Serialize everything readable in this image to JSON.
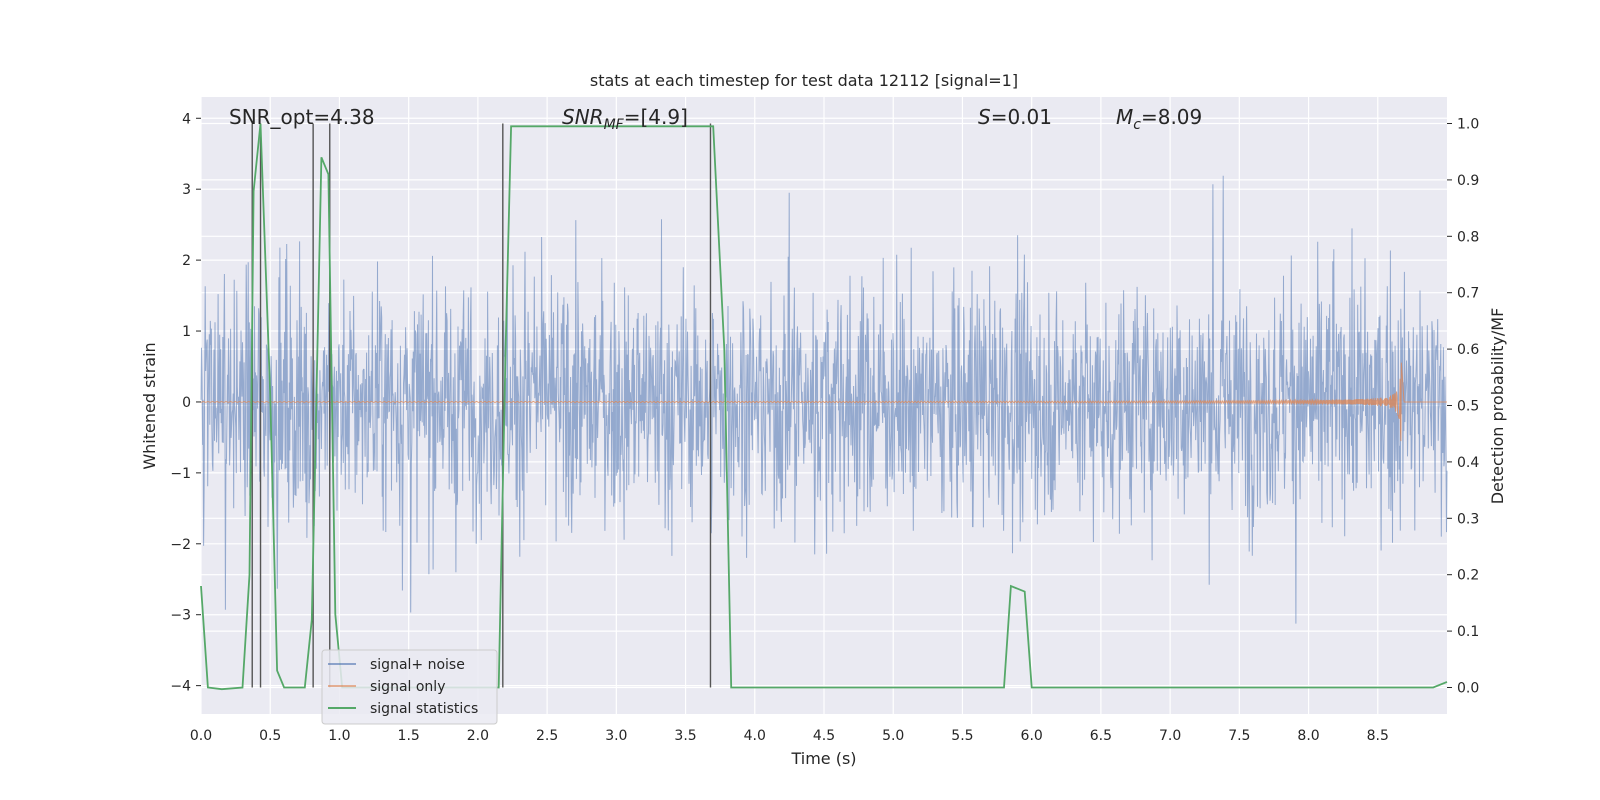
{
  "chart_data": {
    "type": "line",
    "title": "stats at each timestep for test data 12112 [signal=1]",
    "xlabel": "Time (s)",
    "ylabel": "Whitened strain",
    "y2label": "Detection probability/MF",
    "xlim": [
      0.0,
      9.0
    ],
    "ylim": [
      -4.4,
      4.3
    ],
    "y2lim": [
      -0.047,
      1.047
    ],
    "xticks": [
      "0.0",
      "0.5",
      "1.0",
      "1.5",
      "2.0",
      "2.5",
      "3.0",
      "3.5",
      "4.0",
      "4.5",
      "5.0",
      "5.5",
      "6.0",
      "6.5",
      "7.0",
      "7.5",
      "8.0",
      "8.5"
    ],
    "yticks": [
      "−4",
      "−3",
      "−2",
      "−1",
      "0",
      "1",
      "2",
      "3",
      "4"
    ],
    "y2ticks": [
      "0.0",
      "0.1",
      "0.2",
      "0.3",
      "0.4",
      "0.5",
      "0.6",
      "0.7",
      "0.8",
      "0.9",
      "1.0"
    ],
    "grid": true,
    "legend_position": "lower-left",
    "annotations": {
      "snr_opt": "SNR_opt=4.38",
      "snr_mf_main": "SNR",
      "snr_mf_sub": "MF",
      "snr_mf_value": "=[4.9]",
      "s_main": "S",
      "s_value": "=0.01",
      "mc_main": "M",
      "mc_sub": "c",
      "mc_value": "=8.09"
    },
    "series": [
      {
        "name": "signal+ noise",
        "color": "#4c72b0",
        "description_kind": "noise",
        "envelope_typical": 2.0,
        "envelope_peak": 3.9
      },
      {
        "name": "signal only",
        "color": "#dd8452",
        "kind": "chirp",
        "end_time": 8.67,
        "peak_amplitude": 0.75
      },
      {
        "name": "signal statistics",
        "color": "#55a868",
        "axis": "right",
        "x": [
          0.0,
          0.05,
          0.15,
          0.3,
          0.35,
          0.38,
          0.43,
          0.5,
          0.55,
          0.6,
          0.75,
          0.8,
          0.87,
          0.92,
          0.97,
          1.02,
          1.07,
          2.15,
          2.2,
          2.24,
          3.65,
          3.7,
          3.78,
          3.83,
          5.8,
          5.85,
          5.95,
          6.0,
          6.05,
          8.9,
          9.0
        ],
        "y": [
          0.18,
          0.0,
          -0.003,
          0.0,
          0.2,
          0.88,
          1.0,
          0.52,
          0.03,
          0.0,
          0.0,
          0.12,
          0.94,
          0.91,
          0.13,
          0.0,
          0.0,
          0.0,
          0.6,
          0.995,
          0.995,
          0.995,
          0.6,
          0.0,
          0.0,
          0.18,
          0.17,
          0.0,
          0.0,
          0.0,
          0.01
        ]
      }
    ],
    "vertical_lines": [
      0.37,
      0.43,
      0.81,
      0.93,
      2.18,
      3.68
    ],
    "vertical_line_color": "#555555"
  }
}
